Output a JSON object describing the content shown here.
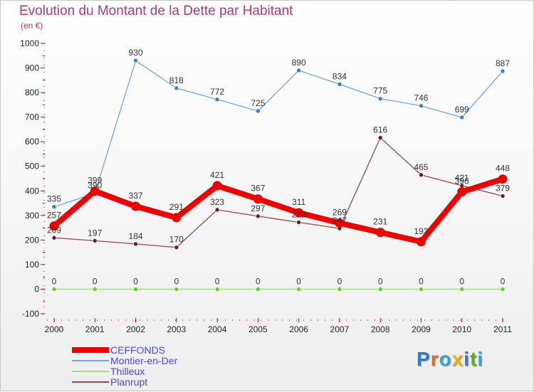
{
  "header": {
    "title": "Evolution du Montant de la Dette par Habitant",
    "unit": "(en €)"
  },
  "colors": {
    "title": "#b5396b",
    "axis": "#cc0000",
    "legend_text": "#4a4adb",
    "grid": "#dddddd"
  },
  "logo": {
    "letters": [
      "P",
      "r",
      "o",
      "x",
      "i",
      "t",
      "i"
    ],
    "colors": [
      "#2e7ad1",
      "#e06a1a",
      "#3aa0d8",
      "#e8b117",
      "#2e7ad1",
      "#66aa22",
      "#3aa0d8"
    ]
  },
  "chart_data": {
    "type": "line",
    "title": "Evolution du Montant de la Dette par Habitant",
    "subtitle": "(en €)",
    "xlabel": "",
    "ylabel": "",
    "categories": [
      "2000",
      "2001",
      "2002",
      "2003",
      "2004",
      "2005",
      "2006",
      "2007",
      "2008",
      "2009",
      "2010",
      "2011"
    ],
    "ylim": [
      -100,
      1000
    ],
    "yticks": [
      "-100",
      "0",
      "100",
      "200",
      "300",
      "400",
      "500",
      "600",
      "700",
      "800",
      "900",
      "1000"
    ],
    "grid": false,
    "legend_position": "bottom-left",
    "series": [
      {
        "name": "CEFFONDS",
        "color": "#ee0000",
        "values": [
          257,
          399,
          337,
          291,
          421,
          367,
          311,
          269,
          231,
          193,
          396,
          448
        ],
        "labels": [
          "257",
          "399",
          "337",
          "291",
          "421",
          "367",
          "311",
          "269",
          "231",
          "193",
          "396",
          "448"
        ]
      },
      {
        "name": "Montier-en-Der",
        "color": "#6fa8dc",
        "marker": "#3a7fc4",
        "values": [
          335,
          390,
          930,
          818,
          772,
          725,
          890,
          834,
          775,
          746,
          699,
          887
        ],
        "labels": [
          "335",
          "390",
          "930",
          "818",
          "772",
          "725",
          "890",
          "834",
          "775",
          "746",
          "699",
          "887"
        ]
      },
      {
        "name": "Thilleux",
        "color": "#99e27a",
        "marker": "#66cc33",
        "values": [
          0,
          0,
          0,
          0,
          0,
          0,
          0,
          0,
          0,
          0,
          0,
          0
        ],
        "labels": [
          "0",
          "0",
          "0",
          "0",
          "0",
          "0",
          "0",
          "0",
          "0",
          "0",
          "0",
          "0"
        ]
      },
      {
        "name": "Planrupt",
        "color": "#8b4a4a",
        "marker": "#6b1f1f",
        "values": [
          209,
          197,
          184,
          170,
          323,
          297,
          272,
          247,
          616,
          465,
          421,
          379
        ],
        "labels": [
          "209",
          "197",
          "184",
          "170",
          "323",
          "297",
          "272",
          "247",
          "616",
          "465",
          "421",
          "379"
        ]
      }
    ]
  }
}
